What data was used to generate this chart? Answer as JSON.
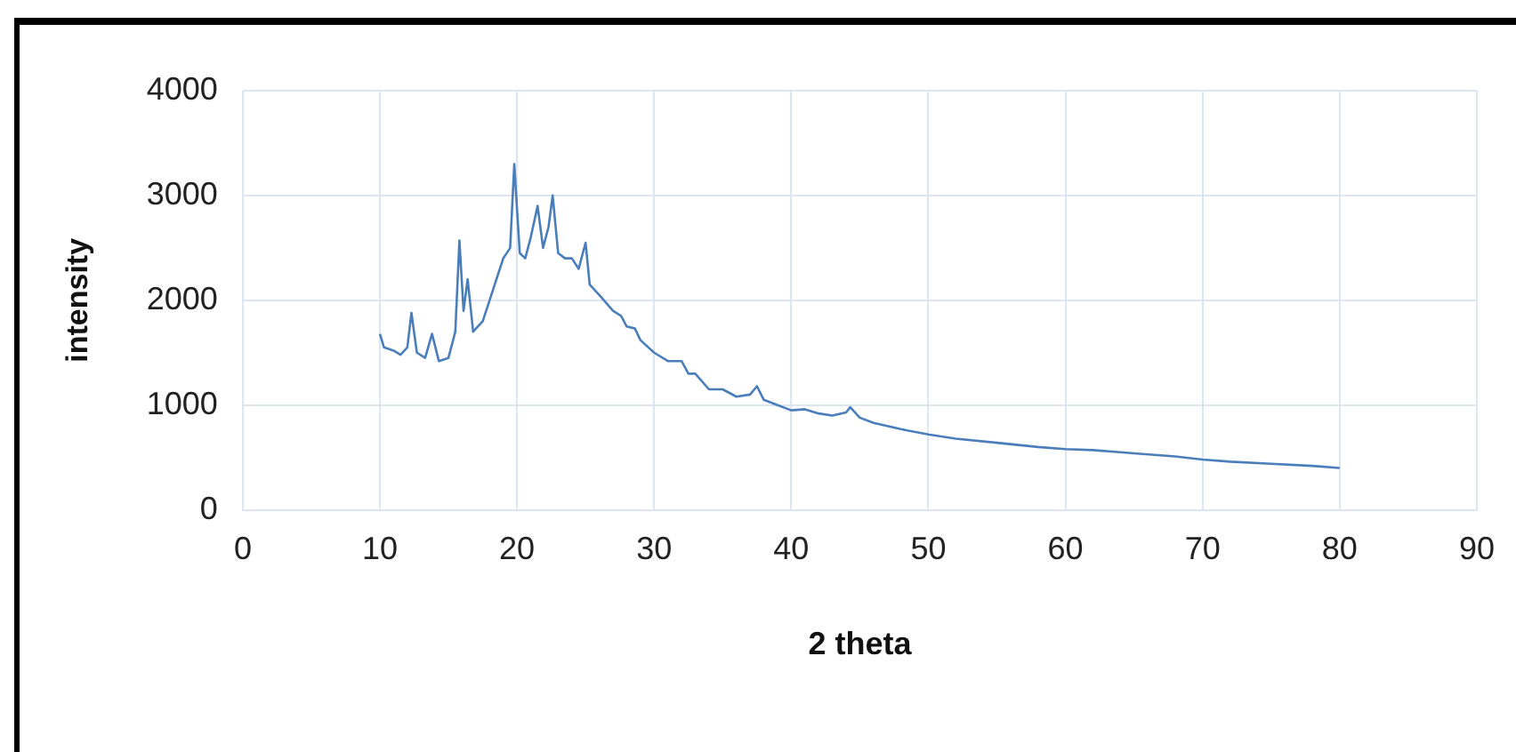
{
  "chart_data": {
    "type": "line",
    "xlabel": "2 theta",
    "ylabel": "intensity",
    "xlim": [
      0,
      90
    ],
    "xticks": [
      0,
      10,
      20,
      30,
      40,
      50,
      60,
      70,
      80,
      90
    ],
    "ylim": [
      0,
      4000
    ],
    "yticks": [
      0,
      1000,
      2000,
      3000,
      4000
    ],
    "grid": true,
    "legend": false,
    "marker": "none",
    "line_style": "solid",
    "series": [
      {
        "color": "#4a7ebb",
        "x": [
          10,
          10.3,
          11,
          11.5,
          12,
          12.3,
          12.7,
          13.3,
          13.8,
          14.3,
          15,
          15.5,
          15.8,
          16.1,
          16.4,
          16.8,
          17.5,
          18,
          18.5,
          19,
          19.5,
          19.8,
          20.2,
          20.6,
          21,
          21.5,
          21.9,
          22.3,
          22.6,
          23,
          23.5,
          24,
          24.5,
          25,
          25.3,
          26,
          27,
          27.6,
          28,
          28.6,
          29,
          30,
          31,
          32,
          32.5,
          33,
          34,
          35,
          36,
          37,
          37.5,
          38,
          39,
          40,
          41,
          42,
          43,
          44,
          44.3,
          45,
          46,
          48,
          50,
          52,
          55,
          58,
          60,
          62,
          65,
          68,
          70,
          72,
          75,
          78,
          80
        ],
        "values": [
          1680,
          1550,
          1520,
          1480,
          1550,
          1880,
          1500,
          1450,
          1680,
          1420,
          1450,
          1700,
          2570,
          1900,
          2200,
          1700,
          1800,
          2000,
          2200,
          2400,
          2500,
          3300,
          2450,
          2400,
          2600,
          2900,
          2500,
          2700,
          3000,
          2450,
          2400,
          2400,
          2300,
          2550,
          2150,
          2050,
          1900,
          1850,
          1750,
          1730,
          1620,
          1500,
          1420,
          1420,
          1300,
          1300,
          1150,
          1150,
          1080,
          1100,
          1180,
          1050,
          1000,
          950,
          960,
          920,
          900,
          930,
          980,
          880,
          830,
          770,
          720,
          680,
          640,
          600,
          580,
          570,
          540,
          510,
          480,
          460,
          440,
          420,
          400
        ]
      }
    ]
  }
}
